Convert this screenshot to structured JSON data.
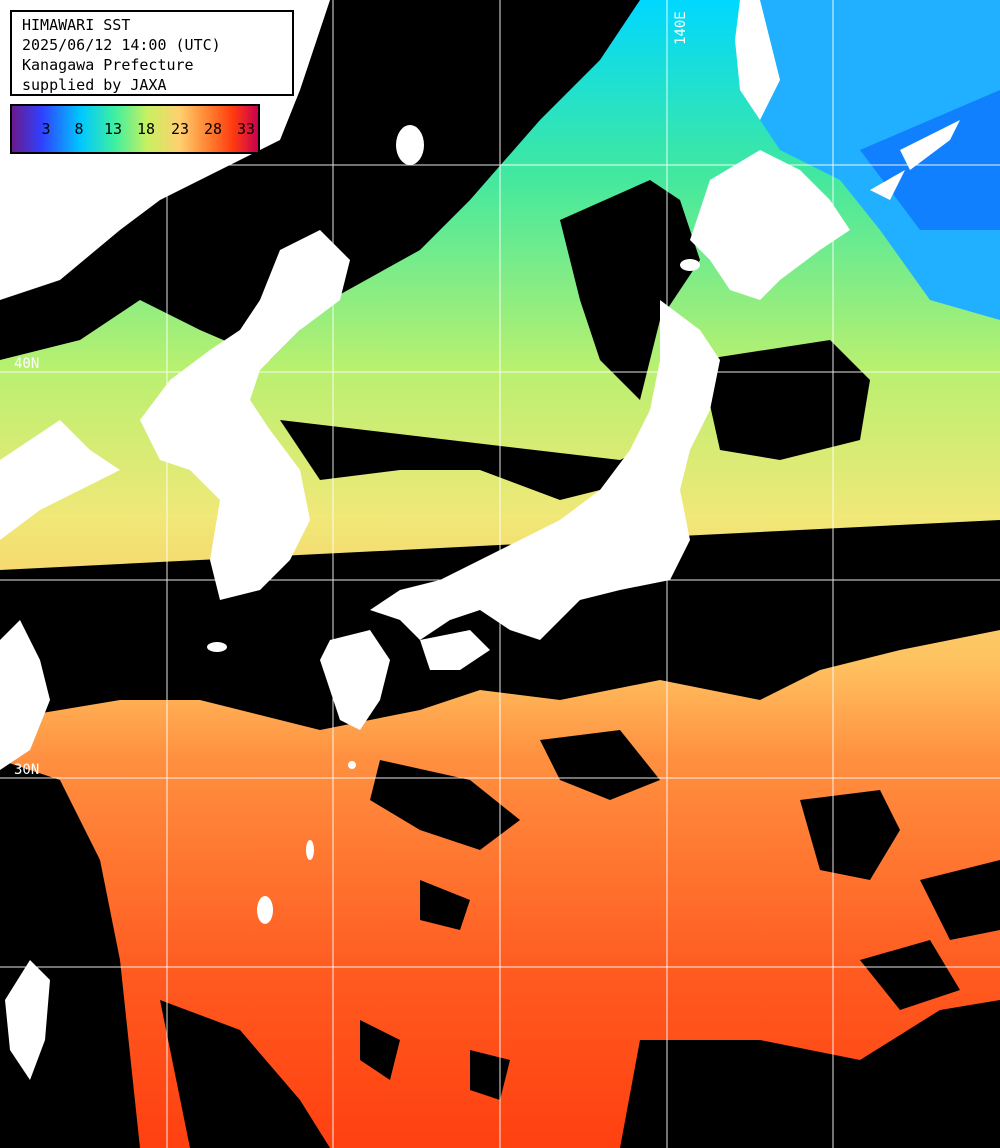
{
  "header": {
    "title": "HIMAWARI SST",
    "datetime": "2025/06/12 14:00 (UTC)",
    "region": "Kanagawa Prefecture",
    "credit": "supplied by JAXA"
  },
  "legend": {
    "labels": [
      "3",
      "8",
      "13",
      "18",
      "23",
      "28",
      "33"
    ],
    "colors": [
      "#5a1a8c",
      "#2a3cff",
      "#00c8ff",
      "#40f0a0",
      "#c8f060",
      "#ffd070",
      "#ff8030",
      "#ff3a10",
      "#c80050"
    ]
  },
  "grid_labels": {
    "lon_140": "140E",
    "lat_40": "40N",
    "lat_30": "30N"
  },
  "colors": {
    "land": "#ffffff",
    "cloud": "#000000",
    "grid": "#ffffff"
  }
}
